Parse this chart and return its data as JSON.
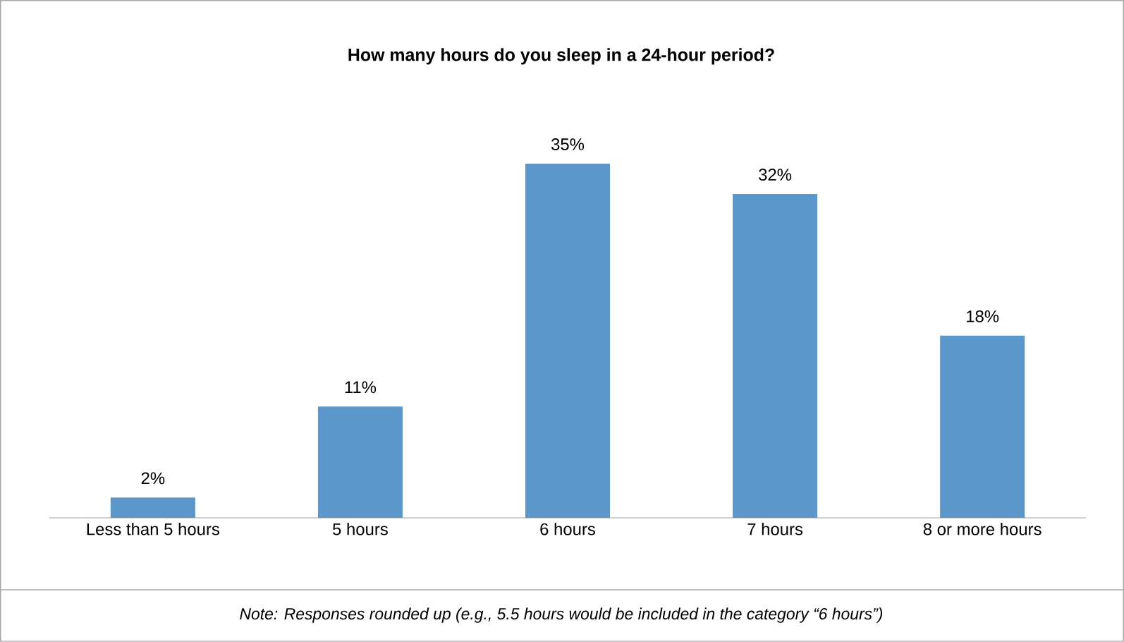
{
  "chart_data": {
    "type": "bar",
    "title": "How many hours do you sleep in a 24-hour period?",
    "categories": [
      "Less than 5 hours",
      "5 hours",
      "6 hours",
      "7 hours",
      "8 or more hours"
    ],
    "values": [
      2,
      11,
      35,
      32,
      18
    ],
    "value_labels": [
      "2%",
      "11%",
      "35%",
      "32%",
      "18%"
    ],
    "color": "#5b97cb",
    "tick_labels": "x",
    "annotations": [
      "Note: Responses rounded up (e.g., 5.5 hours would be included in the category “6 hours”)"
    ]
  }
}
